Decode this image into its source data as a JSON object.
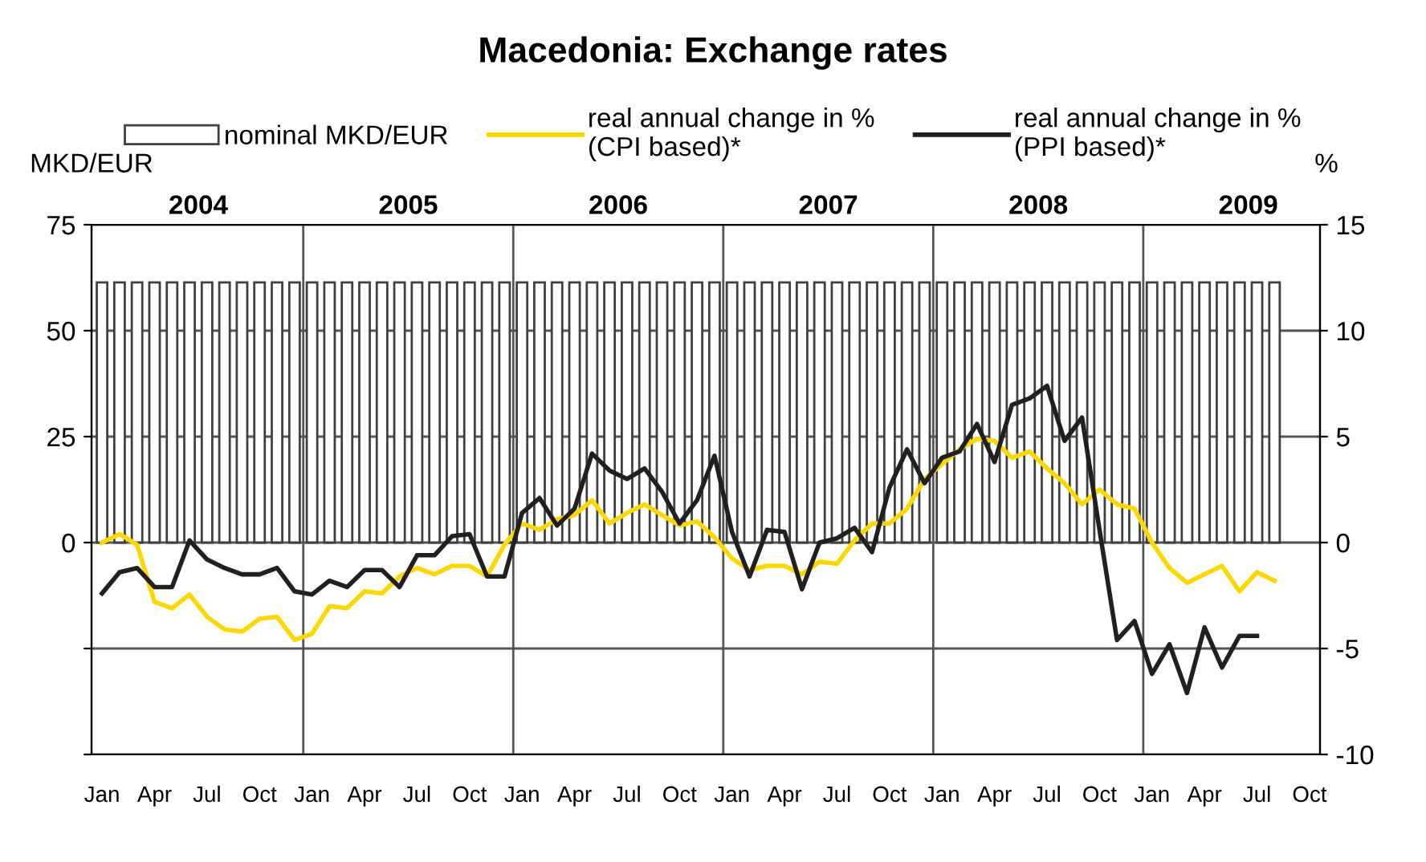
{
  "chart_data": {
    "type": "bar",
    "title": "Macedonia: Exchange rates",
    "ylabel": "MKD/EUR",
    "y2label": "%",
    "categories": [
      "Jan",
      null,
      null,
      "Apr",
      null,
      null,
      "Jul",
      null,
      null,
      "Oct",
      null,
      null,
      "Jan",
      null,
      null,
      "Apr",
      null,
      null,
      "Jul",
      null,
      null,
      "Oct",
      null,
      null,
      "Jan",
      null,
      null,
      "Apr",
      null,
      null,
      "Jul",
      null,
      null,
      "Oct",
      null,
      null,
      "Jan",
      null,
      null,
      "Apr",
      null,
      null,
      "Jul",
      null,
      null,
      "Oct",
      null,
      null,
      "Jan",
      null,
      null,
      "Apr",
      null,
      null,
      "Jul",
      null,
      null,
      "Oct",
      null,
      null,
      "Jan",
      null,
      null,
      "Apr",
      null,
      null,
      "Jul",
      null,
      null,
      "Oct"
    ],
    "annotations": [
      "2004",
      "2005",
      "2006",
      "2007",
      "2008",
      "2009"
    ],
    "series": [
      {
        "name": "nominal MKD/EUR",
        "color": "#404040",
        "values": [
          61.4,
          61.4,
          61.4,
          61.4,
          61.4,
          61.4,
          61.4,
          61.4,
          61.4,
          61.4,
          61.4,
          61.4,
          61.4,
          61.4,
          61.4,
          61.4,
          61.4,
          61.4,
          61.4,
          61.4,
          61.4,
          61.4,
          61.4,
          61.4,
          61.4,
          61.4,
          61.4,
          61.4,
          61.4,
          61.4,
          61.4,
          61.4,
          61.4,
          61.4,
          61.4,
          61.4,
          61.4,
          61.4,
          61.4,
          61.4,
          61.4,
          61.4,
          61.4,
          61.4,
          61.4,
          61.4,
          61.4,
          61.4,
          61.4,
          61.4,
          61.4,
          61.4,
          61.4,
          61.4,
          61.4,
          61.4,
          61.4,
          61.4,
          61.4,
          61.4,
          61.4,
          61.4,
          61.4,
          61.4,
          61.4,
          61.4,
          61.4,
          61.4,
          null,
          null
        ]
      },
      {
        "name": "real annual change in %\n(CPI based)*",
        "type": "line",
        "axis": "y2",
        "color": "#ffd700",
        "values": [
          0.0,
          0.4,
          -0.1,
          -2.8,
          -3.1,
          -2.45,
          -3.5,
          -4.1,
          -4.2,
          -3.6,
          -3.5,
          -4.6,
          -4.3,
          -3.0,
          -3.1,
          -2.3,
          -2.4,
          -1.6,
          -1.2,
          -1.5,
          -1.1,
          -1.1,
          -1.6,
          -0.1,
          0.9,
          0.6,
          1.1,
          1.3,
          2.0,
          0.9,
          1.4,
          1.8,
          1.3,
          0.8,
          1.0,
          0.25,
          -0.75,
          -1.3,
          -1.1,
          -1.1,
          -1.5,
          -0.9,
          -1.0,
          0.1,
          0.9,
          0.9,
          1.6,
          3.0,
          3.7,
          4.4,
          4.9,
          4.8,
          4.0,
          4.3,
          3.5,
          2.8,
          1.8,
          2.5,
          1.8,
          1.6,
          0.0,
          -1.2,
          -1.9,
          -1.5,
          -1.1,
          -2.3,
          -1.4,
          -1.8,
          null,
          null
        ]
      },
      {
        "name": "real annual change in %\n(PPI based)*",
        "type": "line",
        "axis": "y2",
        "color": "#231f20",
        "values": [
          -2.4,
          -1.4,
          -1.2,
          -2.1,
          -2.1,
          0.1,
          -0.8,
          -1.2,
          -1.5,
          -1.5,
          -1.2,
          -2.3,
          -2.45,
          -1.8,
          -2.1,
          -1.3,
          -1.3,
          -2.1,
          -0.6,
          -0.6,
          0.3,
          0.4,
          -1.6,
          -1.6,
          1.4,
          2.1,
          0.8,
          1.6,
          4.2,
          3.4,
          3.0,
          3.5,
          2.4,
          0.9,
          2.0,
          4.1,
          0.5,
          -1.6,
          0.6,
          0.5,
          -2.2,
          0.0,
          0.2,
          0.7,
          -0.45,
          2.6,
          4.4,
          2.8,
          4.0,
          4.3,
          5.6,
          3.8,
          6.5,
          6.8,
          7.4,
          4.8,
          5.9,
          0.6,
          -4.6,
          -3.7,
          -6.2,
          -4.8,
          -7.1,
          -4.0,
          -5.9,
          -4.4,
          -4.4,
          null,
          null,
          null
        ]
      }
    ],
    "ylim": [
      -50,
      75
    ],
    "yticks": [
      {
        "value": -50,
        "label": null
      },
      {
        "value": -25,
        "label": null
      },
      0,
      25,
      50,
      75
    ],
    "y2lim": [
      -10,
      15
    ],
    "y2ticks": [
      -10,
      -5,
      0,
      5,
      10,
      15
    ],
    "grid": "y",
    "legend": "top"
  }
}
